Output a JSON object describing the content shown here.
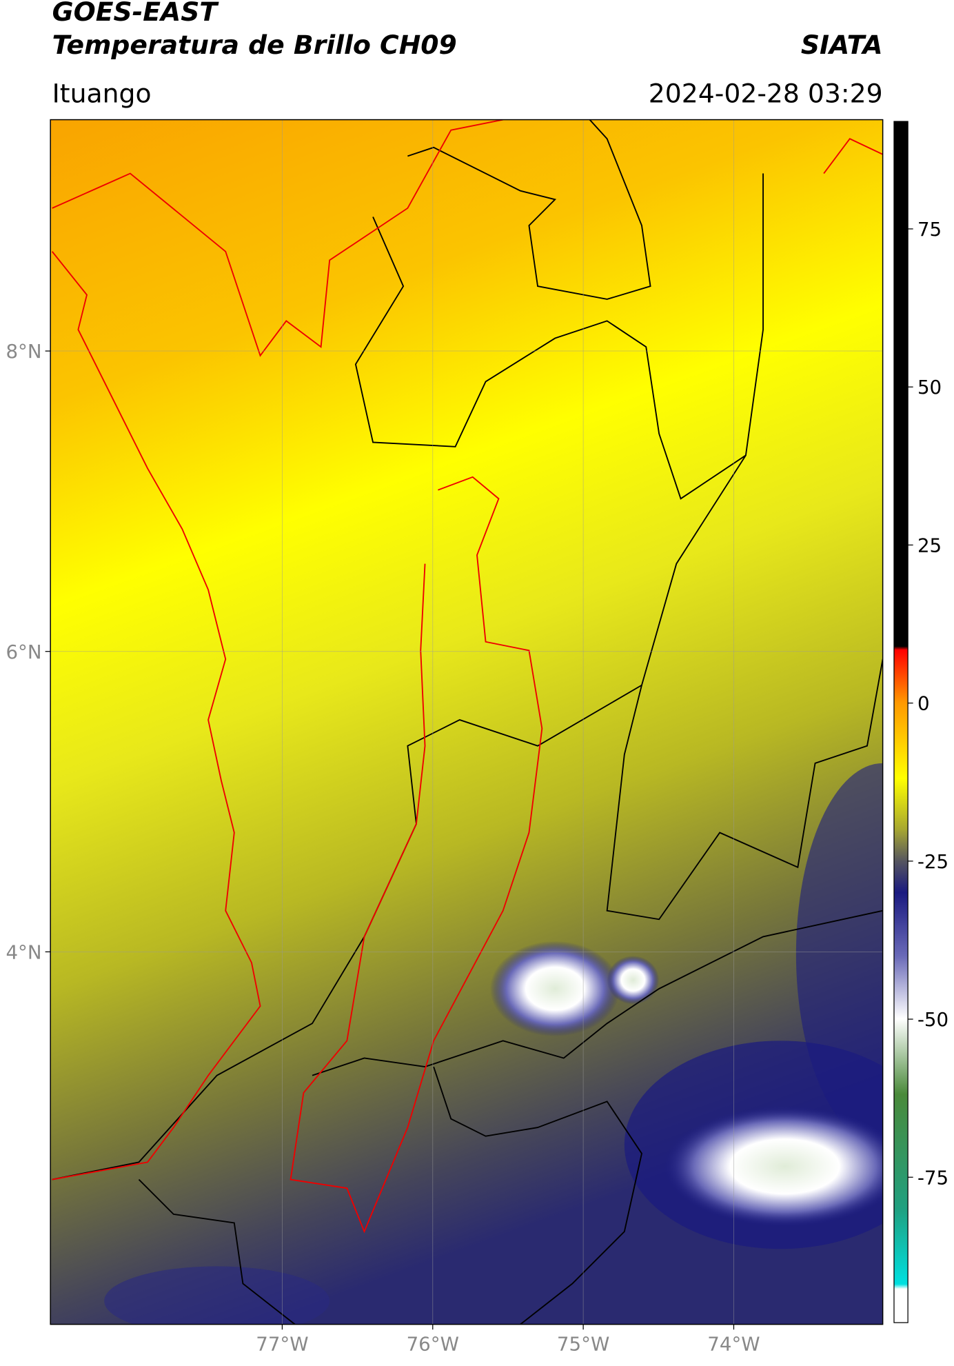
{
  "title": "GOES-EAST",
  "subtitle": "Temperatura de Brillo CH09",
  "source": "SIATA",
  "region": "Ituango",
  "timestamp": "2024-02-28 03:29",
  "map": {
    "xlim": [
      -78.54,
      -73.01
    ],
    "ylim": [
      1.52,
      9.54
    ],
    "xticks": [
      {
        "value": -77,
        "label": "77°W"
      },
      {
        "value": -76,
        "label": "76°W"
      },
      {
        "value": -75,
        "label": "75°W"
      },
      {
        "value": -74,
        "label": "74°W"
      }
    ],
    "yticks": [
      {
        "value": 8,
        "label": "8°N"
      },
      {
        "value": 6,
        "label": "6°N"
      },
      {
        "value": 4,
        "label": "4°N"
      }
    ],
    "grid": true
  },
  "colorbar": {
    "lim": [
      -98,
      92
    ],
    "ticks": [
      75,
      50,
      25,
      0,
      -25,
      -50,
      -75
    ]
  }
}
